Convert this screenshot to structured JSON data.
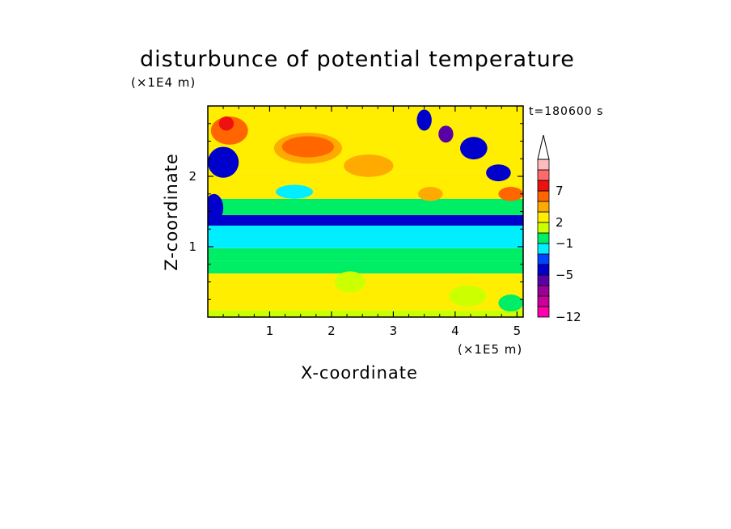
{
  "chart_data": {
    "type": "heatmap",
    "title": "disturbunce of potential temperature",
    "xlabel": "X-coordinate",
    "ylabel": "Z-coordinate",
    "x_unit": "(×1E5 m)",
    "y_unit": "(×1E4 m)",
    "time_label": "t=180600 s",
    "xlim": [
      0,
      5.1
    ],
    "ylim": [
      0,
      3.0
    ],
    "x_ticks": [
      "1",
      "2",
      "3",
      "4",
      "5"
    ],
    "x_tick_values": [
      1,
      2,
      3,
      4,
      5
    ],
    "y_ticks": [
      "1",
      "2"
    ],
    "y_tick_values": [
      1,
      2
    ],
    "colorbar": {
      "colors": [
        "#ff00aa",
        "#cc0099",
        "#9a0099",
        "#5a00a8",
        "#0000cc",
        "#0044ff",
        "#00eeff",
        "#00ee66",
        "#ccff00",
        "#ffee00",
        "#ffaa00",
        "#ff6600",
        "#ee1111",
        "#ff6a6a",
        "#ffbbbb"
      ],
      "extend_top": true,
      "tick_labels": [
        "7",
        "2",
        "−1",
        "−5",
        "−12"
      ],
      "tick_band_index": [
        12,
        9,
        7,
        4,
        0
      ]
    },
    "bands": [
      {
        "z": [
          0.0,
          0.1
        ],
        "color": "#ccff00"
      },
      {
        "z": [
          0.1,
          0.62
        ],
        "color": "#ffee00"
      },
      {
        "z": [
          0.62,
          0.8
        ],
        "color": "#00ee66"
      },
      {
        "z": [
          0.8,
          0.98
        ],
        "color": "#00ee66"
      },
      {
        "z": [
          0.98,
          1.3
        ],
        "color": "#00eeff"
      },
      {
        "z": [
          1.3,
          1.45
        ],
        "color": "#0000cc"
      },
      {
        "z": [
          1.45,
          1.68
        ],
        "color": "#00ee66"
      },
      {
        "z": [
          1.68,
          2.05
        ],
        "color": "#ffee00"
      },
      {
        "z": [
          2.05,
          3.0
        ],
        "color": "#ffee00"
      }
    ],
    "features": [
      {
        "x": 1.62,
        "z": 2.4,
        "rx": 0.55,
        "rz": 0.22,
        "color": "#ffaa00"
      },
      {
        "x": 1.62,
        "z": 2.42,
        "rx": 0.42,
        "rz": 0.15,
        "color": "#ff6600"
      },
      {
        "x": 0.25,
        "z": 2.2,
        "rx": 0.25,
        "rz": 0.22,
        "color": "#0000cc"
      },
      {
        "x": 0.35,
        "z": 2.65,
        "rx": 0.3,
        "rz": 0.2,
        "color": "#ff6600"
      },
      {
        "x": 0.3,
        "z": 2.75,
        "rx": 0.12,
        "rz": 0.1,
        "color": "#ee1111"
      },
      {
        "x": 2.6,
        "z": 2.15,
        "rx": 0.4,
        "rz": 0.16,
        "color": "#ffaa00"
      },
      {
        "x": 3.5,
        "z": 2.8,
        "rx": 0.12,
        "rz": 0.15,
        "color": "#0000cc"
      },
      {
        "x": 3.85,
        "z": 2.6,
        "rx": 0.12,
        "rz": 0.12,
        "color": "#5a00a8"
      },
      {
        "x": 4.3,
        "z": 2.4,
        "rx": 0.22,
        "rz": 0.16,
        "color": "#0000cc"
      },
      {
        "x": 4.7,
        "z": 2.05,
        "rx": 0.2,
        "rz": 0.12,
        "color": "#0000cc"
      },
      {
        "x": 4.9,
        "z": 1.75,
        "rx": 0.2,
        "rz": 0.1,
        "color": "#ff6600"
      },
      {
        "x": 3.6,
        "z": 1.75,
        "rx": 0.2,
        "rz": 0.1,
        "color": "#ffaa00"
      },
      {
        "x": 0.1,
        "z": 1.55,
        "rx": 0.15,
        "rz": 0.2,
        "color": "#0000cc"
      },
      {
        "x": 1.4,
        "z": 1.78,
        "rx": 0.3,
        "rz": 0.1,
        "color": "#00eeff"
      },
      {
        "x": 2.3,
        "z": 0.5,
        "rx": 0.25,
        "rz": 0.15,
        "color": "#ccff00"
      },
      {
        "x": 4.2,
        "z": 0.3,
        "rx": 0.3,
        "rz": 0.15,
        "color": "#ccff00"
      },
      {
        "x": 4.9,
        "z": 0.2,
        "rx": 0.2,
        "rz": 0.12,
        "color": "#00ee66"
      }
    ]
  }
}
